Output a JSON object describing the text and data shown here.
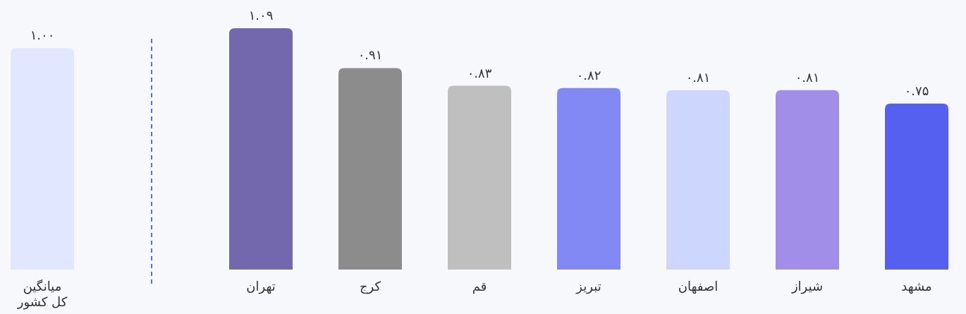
{
  "chart_data": {
    "type": "bar",
    "categories": [
      "میانگین\nکل کشور",
      null,
      "تهران",
      "کرج",
      "قم",
      "تبریز",
      "اصفهان",
      "شیراز",
      "مشهد"
    ],
    "values": [
      1.0,
      null,
      1.09,
      0.91,
      0.83,
      0.82,
      0.81,
      0.81,
      0.75
    ],
    "colors": [
      "#e0e7ff",
      null,
      "#7367ad",
      "#8c8c8c",
      "#bfbfbf",
      "#8289f5",
      "#cdd7fd",
      "#a18ee8",
      "#5560f0"
    ],
    "value_labels": [
      "۱.۰۰",
      null,
      "۱.۰۹",
      "۰.۹۱",
      "۰.۸۳",
      "۰.۸۲",
      "۰.۸۱",
      "۰.۸۱",
      "۰.۷۵"
    ]
  }
}
